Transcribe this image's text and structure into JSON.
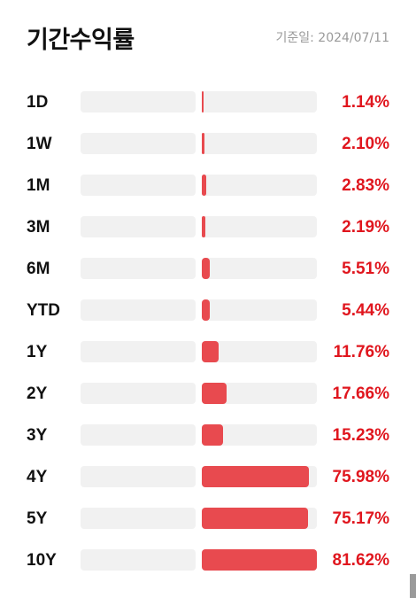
{
  "title": "기간수익률",
  "as_of": "기준일: 2024/07/11",
  "accent_color": "#e84a4f",
  "value_color": "#e0161e",
  "rows": [
    {
      "period": "1D",
      "value": "1.14%",
      "fraction": 0.014
    },
    {
      "period": "1W",
      "value": "2.10%",
      "fraction": 0.026
    },
    {
      "period": "1M",
      "value": "2.83%",
      "fraction": 0.035
    },
    {
      "period": "3M",
      "value": "2.19%",
      "fraction": 0.027
    },
    {
      "period": "6M",
      "value": "5.51%",
      "fraction": 0.068
    },
    {
      "period": "YTD",
      "value": "5.44%",
      "fraction": 0.067
    },
    {
      "period": "1Y",
      "value": "11.76%",
      "fraction": 0.144
    },
    {
      "period": "2Y",
      "value": "17.66%",
      "fraction": 0.216
    },
    {
      "period": "3Y",
      "value": "15.23%",
      "fraction": 0.187
    },
    {
      "period": "4Y",
      "value": "75.98%",
      "fraction": 0.931
    },
    {
      "period": "5Y",
      "value": "75.17%",
      "fraction": 0.921
    },
    {
      "period": "10Y",
      "value": "81.62%",
      "fraction": 1.0
    }
  ]
}
